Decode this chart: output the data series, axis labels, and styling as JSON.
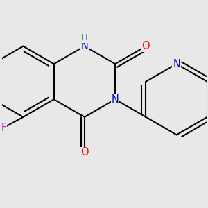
{
  "bg_color": "#e8e8e8",
  "bond_color": "#000000",
  "bond_width": 1.5,
  "atom_colors": {
    "N": "#0000cc",
    "O": "#ff0000",
    "F": "#cc00cc",
    "NH_color": "#008080"
  },
  "font_size": 10.5
}
